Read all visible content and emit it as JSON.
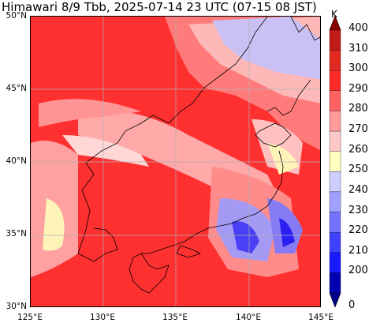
{
  "title": "Himawari 8/9 Tbb, 2025-07-14 23 UTC (07-15 08 JST)",
  "map": {
    "lon_ticks": [
      "125°E",
      "130°E",
      "135°E",
      "140°E",
      "145°E"
    ],
    "lat_ticks": [
      "50°N",
      "45°N",
      "40°N",
      "35°N",
      "30°N"
    ],
    "extent": {
      "lon": [
        125,
        145
      ],
      "lat": [
        30,
        50
      ]
    }
  },
  "colorbar": {
    "unit": "K",
    "labels": [
      "400",
      "310",
      "300",
      "290",
      "280",
      "270",
      "260",
      "250",
      "240",
      "230",
      "220",
      "210",
      "200",
      "0"
    ],
    "colors": [
      "#8b0000",
      "#c11b17",
      "#e02a20",
      "#ff2b2b",
      "#ff6060",
      "#ff9a9a",
      "#ffc8c8",
      "#ffffc0",
      "#ccccff",
      "#a0a0ff",
      "#7373ff",
      "#4040ff",
      "#1a1aff",
      "#0000b0",
      "#00008b"
    ]
  }
}
